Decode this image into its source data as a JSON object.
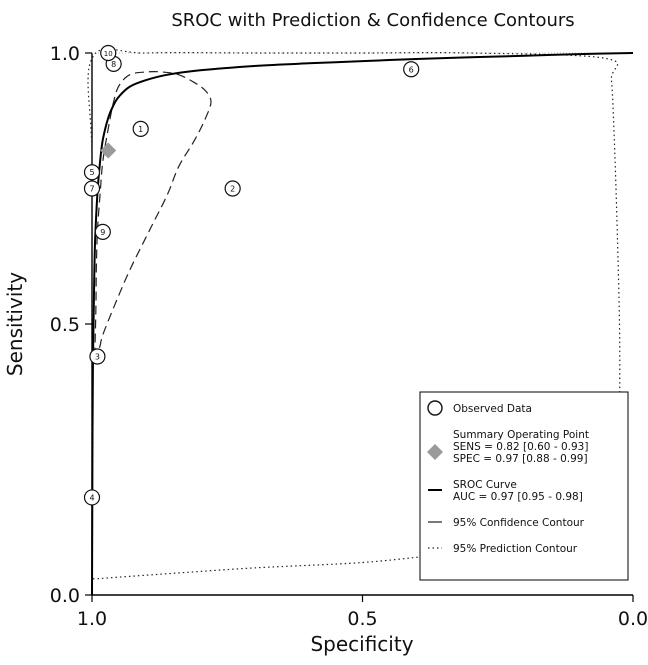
{
  "chart_data": {
    "type": "scatter",
    "title": "SROC with Prediction & Confidence Contours",
    "xlabel": "Specificity",
    "ylabel": "Sensitivity",
    "xlim": [
      1.0,
      0.0
    ],
    "ylim": [
      0.0,
      1.0
    ],
    "x_ticks": [
      "1.0",
      "0.5",
      "0.0"
    ],
    "y_ticks": [
      "0.0",
      "0.5",
      "1.0"
    ],
    "grid": false,
    "legend_position": "bottom-right",
    "observed": [
      {
        "label": "1",
        "specificity": 0.91,
        "sensitivity": 0.86
      },
      {
        "label": "2",
        "specificity": 0.74,
        "sensitivity": 0.75
      },
      {
        "label": "3",
        "specificity": 0.99,
        "sensitivity": 0.44
      },
      {
        "label": "4",
        "specificity": 1.0,
        "sensitivity": 0.18
      },
      {
        "label": "5",
        "specificity": 1.0,
        "sensitivity": 0.78
      },
      {
        "label": "6",
        "specificity": 0.41,
        "sensitivity": 0.97
      },
      {
        "label": "7",
        "specificity": 1.0,
        "sensitivity": 0.75
      },
      {
        "label": "8",
        "specificity": 0.96,
        "sensitivity": 0.98
      },
      {
        "label": "9",
        "specificity": 0.98,
        "sensitivity": 0.67
      },
      {
        "label": "10",
        "specificity": 0.97,
        "sensitivity": 1.0
      }
    ],
    "summary_point": {
      "specificity": 0.97,
      "sensitivity": 0.82
    },
    "sroc_curve": {
      "specificity": [
        1.0,
        0.999,
        0.998,
        0.996,
        0.994,
        0.99,
        0.985,
        0.98,
        0.97,
        0.96,
        0.95,
        0.93,
        0.9,
        0.86,
        0.8,
        0.7,
        0.6,
        0.5,
        0.4,
        0.3,
        0.2,
        0.1,
        0.0
      ],
      "sensitivity": [
        0.0,
        0.3,
        0.45,
        0.58,
        0.66,
        0.74,
        0.8,
        0.84,
        0.88,
        0.904,
        0.92,
        0.938,
        0.95,
        0.96,
        0.968,
        0.976,
        0.981,
        0.985,
        0.989,
        0.992,
        0.995,
        0.998,
        1.0
      ]
    },
    "confidence_contour": {
      "specificity": [
        0.995,
        0.993,
        0.992,
        0.99,
        0.985,
        0.98,
        0.97,
        0.96,
        0.95,
        0.93,
        0.9,
        0.87,
        0.84,
        0.81,
        0.79,
        0.78,
        0.79,
        0.81,
        0.84,
        0.86,
        0.89,
        0.93,
        0.96,
        0.98,
        0.985,
        0.988,
        0.99,
        0.993,
        0.995
      ],
      "sensitivity": [
        0.44,
        0.52,
        0.6,
        0.67,
        0.74,
        0.8,
        0.86,
        0.91,
        0.94,
        0.96,
        0.965,
        0.965,
        0.96,
        0.945,
        0.93,
        0.91,
        0.88,
        0.84,
        0.79,
        0.74,
        0.68,
        0.6,
        0.53,
        0.48,
        0.46,
        0.45,
        0.445,
        0.44,
        0.44
      ]
    },
    "prediction_contour": {
      "specificity": [
        1.0,
        1.0,
        1.0,
        1.0,
        0.9,
        0.7,
        0.5,
        0.3,
        0.05,
        0.04,
        0.035,
        0.03,
        0.025,
        0.025,
        0.03,
        0.05,
        0.08,
        0.12,
        0.2,
        0.35,
        0.5,
        0.7,
        0.85,
        0.95,
        0.99,
        1.0
      ],
      "sensitivity": [
        0.03,
        0.4,
        0.8,
        0.99,
        1.0,
        1.0,
        1.0,
        1.0,
        0.99,
        0.95,
        0.85,
        0.7,
        0.5,
        0.35,
        0.25,
        0.18,
        0.14,
        0.11,
        0.09,
        0.075,
        0.06,
        0.05,
        0.04,
        0.033,
        0.03,
        0.03
      ]
    },
    "legend": [
      {
        "kind": "observed",
        "lines": [
          "Observed Data"
        ]
      },
      {
        "kind": "summary",
        "lines": [
          "Summary Operating Point",
          "SENS = 0.82 [0.60 - 0.93]",
          "SPEC = 0.97 [0.88 - 0.99]"
        ]
      },
      {
        "kind": "sroc",
        "lines": [
          "SROC Curve",
          "AUC = 0.97 [0.95 - 0.98]"
        ]
      },
      {
        "kind": "confidence",
        "lines": [
          "95% Confidence Contour"
        ]
      },
      {
        "kind": "prediction",
        "lines": [
          "95% Prediction Contour"
        ]
      }
    ],
    "colors": {
      "axis": "#000000",
      "sroc": "#000000",
      "contour": "#222222",
      "summary_point": "#9a9a9a",
      "marker_fill": "#ffffff"
    }
  }
}
